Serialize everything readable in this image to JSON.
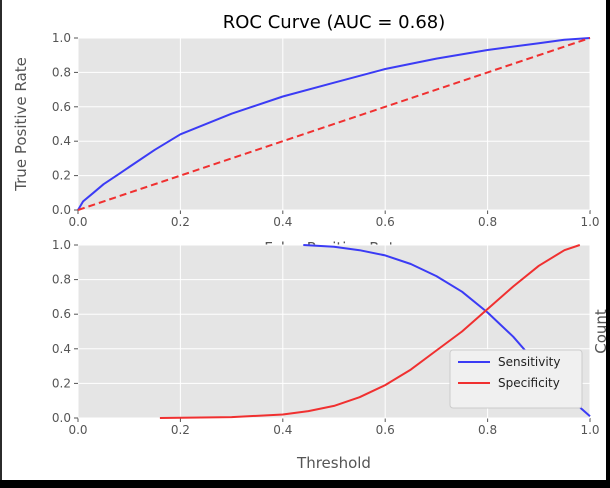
{
  "chart_data": [
    {
      "type": "line",
      "title": "ROC Curve (AUC = 0.68)",
      "xlabel": "False Positive Rate",
      "ylabel": "True Positive Rate",
      "xlim": [
        0,
        1
      ],
      "ylim": [
        0,
        1
      ],
      "x_ticks": [
        "0.0",
        "0.2",
        "0.4",
        "0.6",
        "0.8",
        "1.0"
      ],
      "y_ticks": [
        "0.0",
        "0.2",
        "0.4",
        "0.6",
        "0.8",
        "1.0"
      ],
      "grid": true,
      "series": [
        {
          "color": "#3b3bf5",
          "style": "solid",
          "x": [
            0,
            0.01,
            0.03,
            0.05,
            0.08,
            0.1,
            0.15,
            0.2,
            0.3,
            0.4,
            0.5,
            0.6,
            0.7,
            0.8,
            0.9,
            0.95,
            1.0
          ],
          "y": [
            0,
            0.05,
            0.1,
            0.15,
            0.21,
            0.25,
            0.35,
            0.44,
            0.56,
            0.66,
            0.74,
            0.82,
            0.88,
            0.93,
            0.97,
            0.99,
            1.0
          ]
        },
        {
          "color": "#f03030",
          "style": "dashed",
          "x": [
            0,
            1
          ],
          "y": [
            0,
            1
          ]
        }
      ]
    },
    {
      "type": "line",
      "title": "",
      "xlabel": "Threshold",
      "ylabel": "Count",
      "xlim": [
        0,
        1
      ],
      "ylim": [
        0,
        1
      ],
      "x_ticks": [
        "0.0",
        "0.2",
        "0.4",
        "0.6",
        "0.8",
        "1.0"
      ],
      "y_ticks": [
        "0.0",
        "0.2",
        "0.4",
        "0.6",
        "0.8",
        "1.0"
      ],
      "grid": true,
      "legend_position": "lower-right",
      "series": [
        {
          "name": "Sensitivity",
          "color": "#3b3bf5",
          "style": "solid",
          "x": [
            0.44,
            0.5,
            0.55,
            0.6,
            0.65,
            0.7,
            0.75,
            0.8,
            0.85,
            0.9,
            0.95,
            1.0
          ],
          "y": [
            1.0,
            0.99,
            0.97,
            0.94,
            0.89,
            0.82,
            0.73,
            0.61,
            0.47,
            0.3,
            0.14,
            0.01
          ]
        },
        {
          "name": "Specificity",
          "color": "#f03030",
          "style": "solid",
          "x": [
            0.16,
            0.3,
            0.4,
            0.45,
            0.5,
            0.55,
            0.6,
            0.65,
            0.7,
            0.75,
            0.8,
            0.85,
            0.9,
            0.95,
            0.98
          ],
          "y": [
            0.0,
            0.005,
            0.02,
            0.04,
            0.07,
            0.12,
            0.19,
            0.28,
            0.39,
            0.5,
            0.63,
            0.76,
            0.88,
            0.97,
            1.0
          ]
        }
      ]
    }
  ]
}
